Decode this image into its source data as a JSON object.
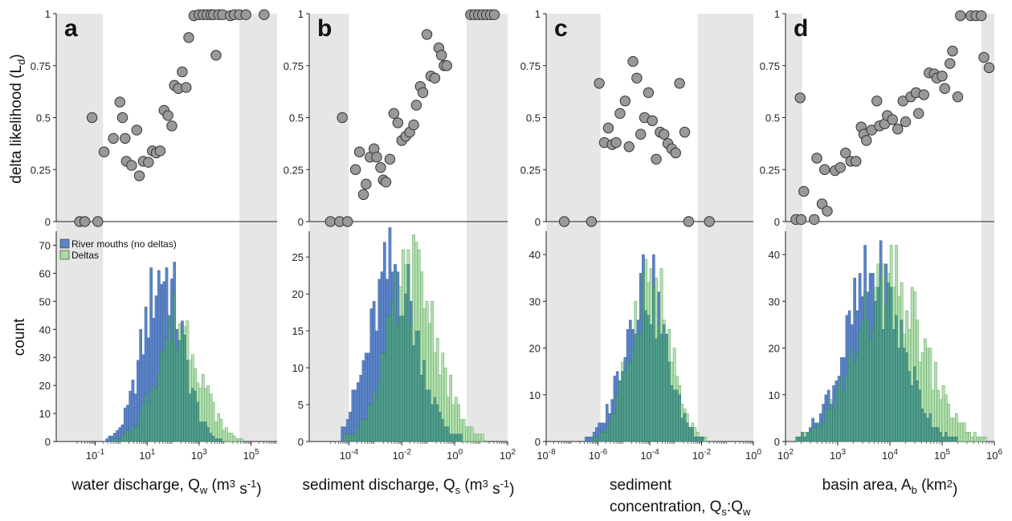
{
  "figure": {
    "ylabel_top": "delta likelihood (L",
    "ylabel_top_sub": "d",
    "ylabel_top_end": ")",
    "ylabel_bottom": "count",
    "legend": [
      {
        "label": "River mouths (no deltas)",
        "color": "#5b83c7"
      },
      {
        "label": "Deltas",
        "color": "#a9dba0"
      }
    ]
  },
  "colors": {
    "shade": "#e6e6e6",
    "point_fill": "#999999",
    "point_stroke": "#333333",
    "bar_blue": "#5b83c7",
    "bar_green": "#a6dca0",
    "overlap": "#4f9d8d"
  },
  "chart_data": [
    {
      "letter": "a",
      "type": "scatter+histogram",
      "xscale": "log",
      "xlim_log": [
        -2.5,
        6
      ],
      "xlabel": {
        "pre": "water discharge, Q",
        "sub": "w",
        "post": " (m",
        "sup1": "3",
        "mid": " s",
        "sup2": "-1",
        "end": ")"
      },
      "xticks": [
        {
          "base": "10",
          "exp": "-1",
          "v": -1
        },
        {
          "base": "10",
          "exp": "1",
          "v": 1
        },
        {
          "base": "10",
          "exp": "3",
          "v": 3
        },
        {
          "base": "10",
          "exp": "5",
          "v": 5
        }
      ],
      "shade": [
        [
          -2.5,
          -0.7
        ],
        [
          4.55,
          6
        ]
      ],
      "top_ylim": [
        0,
        1
      ],
      "top_yticks": [
        {
          "v": 0,
          "label": "0"
        },
        {
          "v": 0.25,
          "label": "0.25"
        },
        {
          "v": 0.5,
          "label": "0.5"
        },
        {
          "v": 0.75,
          "label": "0.75"
        },
        {
          "v": 1,
          "label": "1"
        }
      ],
      "likelihood_points": [
        [
          -1.6,
          0
        ],
        [
          -1.4,
          0
        ],
        [
          -0.9,
          0
        ],
        [
          -1.12,
          0.5
        ],
        [
          -0.66,
          0.335
        ],
        [
          -0.3,
          0.4
        ],
        [
          -0.05,
          0.575
        ],
        [
          0.05,
          0.5
        ],
        [
          0.15,
          0.4
        ],
        [
          0.2,
          0.29
        ],
        [
          0.4,
          0.27
        ],
        [
          0.6,
          0.44
        ],
        [
          0.7,
          0.22
        ],
        [
          0.85,
          0.29
        ],
        [
          1.05,
          0.285
        ],
        [
          1.2,
          0.34
        ],
        [
          1.35,
          0.33
        ],
        [
          1.5,
          0.34
        ],
        [
          1.65,
          0.535
        ],
        [
          1.8,
          0.51
        ],
        [
          1.95,
          0.46
        ],
        [
          2.05,
          0.655
        ],
        [
          2.2,
          0.64
        ],
        [
          2.35,
          0.72
        ],
        [
          2.5,
          0.645
        ],
        [
          2.6,
          0.885
        ],
        [
          2.8,
          0.99
        ],
        [
          3.0,
          0.995
        ],
        [
          3.15,
          0.995
        ],
        [
          3.3,
          0.995
        ],
        [
          3.45,
          0.995
        ],
        [
          3.55,
          0.995
        ],
        [
          3.75,
          0.995
        ],
        [
          3.9,
          0.995
        ],
        [
          4.2,
          0.99
        ],
        [
          4.35,
          0.995
        ],
        [
          4.55,
          0.995
        ],
        [
          4.8,
          0.995
        ],
        [
          3.65,
          0.8
        ],
        [
          5.5,
          0.995
        ]
      ],
      "bottom_ylim": [
        0,
        75
      ],
      "bottom_yticks": [
        {
          "v": 0,
          "label": "0"
        },
        {
          "v": 10,
          "label": "10"
        },
        {
          "v": 20,
          "label": "20"
        },
        {
          "v": 30,
          "label": "30"
        },
        {
          "v": 40,
          "label": "40"
        },
        {
          "v": 50,
          "label": "50"
        },
        {
          "v": 60,
          "label": "60"
        },
        {
          "v": 70,
          "label": "70"
        }
      ],
      "hist_mu_blue": 1.6,
      "hist_sd_blue": 0.75,
      "hist_peak_blue": 62,
      "hist_mu_green": 2.2,
      "hist_sd_green": 0.85,
      "hist_peak_green": 44,
      "hist_range": [
        -1.7,
        5.6
      ],
      "hist_bin": 0.1
    },
    {
      "letter": "b",
      "type": "scatter+histogram",
      "xscale": "log",
      "xlim_log": [
        -5.5,
        2
      ],
      "xlabel": {
        "pre": "sediment discharge, Q",
        "sub": "s",
        "post": " (m",
        "sup1": "3",
        "mid": " s",
        "sup2": "-1",
        "end": ")"
      },
      "xticks": [
        {
          "base": "10",
          "exp": "-4",
          "v": -4
        },
        {
          "base": "10",
          "exp": "-2",
          "v": -2
        },
        {
          "base": "10",
          "exp": "0",
          "v": 0
        },
        {
          "base": "10",
          "exp": "2",
          "v": 2
        }
      ],
      "shade": [
        [
          -5.5,
          -4.0
        ],
        [
          0.45,
          2
        ]
      ],
      "top_ylim": [
        0,
        1
      ],
      "top_yticks": [
        {
          "v": 0,
          "label": "0"
        },
        {
          "v": 0.25,
          "label": "0.25"
        },
        {
          "v": 0.5,
          "label": "0.5"
        },
        {
          "v": 0.75,
          "label": "0.75"
        },
        {
          "v": 1,
          "label": "1"
        }
      ],
      "likelihood_points": [
        [
          -4.7,
          0
        ],
        [
          -4.35,
          0
        ],
        [
          -4.05,
          0
        ],
        [
          -4.25,
          0.5
        ],
        [
          -3.75,
          0.25
        ],
        [
          -3.6,
          0.335
        ],
        [
          -3.45,
          0.13
        ],
        [
          -3.35,
          0.18
        ],
        [
          -3.2,
          0.31
        ],
        [
          -3.05,
          0.35
        ],
        [
          -2.95,
          0.31
        ],
        [
          -2.8,
          0.26
        ],
        [
          -2.7,
          0.2
        ],
        [
          -2.6,
          0.19
        ],
        [
          -2.45,
          0.3
        ],
        [
          -2.3,
          0.52
        ],
        [
          -2.15,
          0.475
        ],
        [
          -2.0,
          0.39
        ],
        [
          -1.85,
          0.41
        ],
        [
          -1.7,
          0.43
        ],
        [
          -1.55,
          0.465
        ],
        [
          -1.45,
          0.56
        ],
        [
          -1.3,
          0.65
        ],
        [
          -1.2,
          0.62
        ],
        [
          -1.05,
          0.9
        ],
        [
          -0.9,
          0.7
        ],
        [
          -0.75,
          0.69
        ],
        [
          -0.6,
          0.835
        ],
        [
          -0.5,
          0.8
        ],
        [
          -0.4,
          0.75
        ],
        [
          -0.3,
          0.75
        ],
        [
          0.6,
          0.995
        ],
        [
          0.75,
          0.995
        ],
        [
          0.9,
          0.995
        ],
        [
          1.05,
          0.995
        ],
        [
          1.2,
          0.995
        ],
        [
          1.35,
          0.995
        ],
        [
          1.5,
          0.995
        ]
      ],
      "bottom_ylim": [
        0,
        28.5
      ],
      "bottom_yticks": [
        {
          "v": 0,
          "label": "0"
        },
        {
          "v": 5,
          "label": "5"
        },
        {
          "v": 10,
          "label": "10"
        },
        {
          "v": 15,
          "label": "15"
        },
        {
          "v": 20,
          "label": "20"
        },
        {
          "v": 25,
          "label": "25"
        }
      ],
      "hist_mu_blue": -2.3,
      "hist_sd_blue": 0.9,
      "hist_peak_blue": 24,
      "hist_mu_green": -1.6,
      "hist_sd_green": 0.95,
      "hist_peak_green": 23,
      "hist_range": [
        -4.3,
        1.6
      ],
      "hist_bin": 0.1
    },
    {
      "letter": "c",
      "type": "scatter+histogram",
      "xscale": "log",
      "xlim_log": [
        -8,
        0
      ],
      "xlabel_line1": "sediment",
      "xlabel": {
        "pre": "concentration, Q",
        "sub": "s",
        "post": ":Q",
        "sup1": "",
        "mid": "",
        "sup2": "",
        "end": "",
        "sub2": "w"
      },
      "xticks": [
        {
          "base": "10",
          "exp": "-8",
          "v": -8
        },
        {
          "base": "10",
          "exp": "-6",
          "v": -6
        },
        {
          "base": "10",
          "exp": "-4",
          "v": -4
        },
        {
          "base": "10",
          "exp": "-2",
          "v": -2
        },
        {
          "base": "10",
          "exp": "0",
          "v": 0
        }
      ],
      "shade": [
        [
          -8,
          -5.9
        ],
        [
          -2.15,
          0
        ]
      ],
      "top_ylim": [
        0,
        1
      ],
      "top_yticks": [
        {
          "v": 0,
          "label": "0"
        },
        {
          "v": 0.25,
          "label": "0.25"
        },
        {
          "v": 0.5,
          "label": "0.5"
        },
        {
          "v": 0.75,
          "label": "0.75"
        },
        {
          "v": 1,
          "label": "1"
        }
      ],
      "likelihood_points": [
        [
          -7.3,
          0
        ],
        [
          -6.25,
          0
        ],
        [
          -5.95,
          0.665
        ],
        [
          -5.75,
          0.38
        ],
        [
          -5.6,
          0.45
        ],
        [
          -5.45,
          0.37
        ],
        [
          -5.3,
          0.38
        ],
        [
          -5.15,
          0.52
        ],
        [
          -4.95,
          0.58
        ],
        [
          -4.8,
          0.36
        ],
        [
          -4.65,
          0.77
        ],
        [
          -4.5,
          0.69
        ],
        [
          -4.35,
          0.42
        ],
        [
          -4.2,
          0.5
        ],
        [
          -4.05,
          0.62
        ],
        [
          -3.9,
          0.485
        ],
        [
          -3.75,
          0.3
        ],
        [
          -3.6,
          0.43
        ],
        [
          -3.45,
          0.42
        ],
        [
          -3.3,
          0.375
        ],
        [
          -3.15,
          0.35
        ],
        [
          -3.0,
          0.33
        ],
        [
          -2.85,
          0.665
        ],
        [
          -2.65,
          0.43
        ],
        [
          -2.5,
          0
        ],
        [
          -1.7,
          0
        ]
      ],
      "bottom_ylim": [
        0,
        45
      ],
      "bottom_yticks": [
        {
          "v": 0,
          "label": "0"
        },
        {
          "v": 10,
          "label": "10"
        },
        {
          "v": 20,
          "label": "20"
        },
        {
          "v": 30,
          "label": "30"
        },
        {
          "v": 40,
          "label": "40"
        }
      ],
      "hist_mu_blue": -4.2,
      "hist_sd_blue": 0.8,
      "hist_peak_blue": 35,
      "hist_mu_green": -4.0,
      "hist_sd_green": 0.75,
      "hist_peak_green": 36,
      "hist_range": [
        -6.5,
        -1.8
      ],
      "hist_bin": 0.1
    },
    {
      "letter": "d",
      "type": "scatter+histogram",
      "xscale": "log",
      "xlim_log": [
        2,
        6
      ],
      "xlabel": {
        "pre": "basin area, A",
        "sub": "b",
        "post": " (km",
        "sup1": "2",
        "mid": "",
        "sup2": "",
        "end": ")"
      },
      "xticks": [
        {
          "base": "10",
          "exp": "2",
          "v": 2
        },
        {
          "base": "10",
          "exp": "3",
          "v": 3
        },
        {
          "base": "10",
          "exp": "4",
          "v": 4
        },
        {
          "base": "10",
          "exp": "5",
          "v": 5
        },
        {
          "base": "10",
          "exp": "6",
          "v": 6
        }
      ],
      "shade": [
        [
          2,
          2.32
        ],
        [
          5.75,
          6
        ]
      ],
      "top_ylim": [
        0,
        1
      ],
      "top_yticks": [
        {
          "v": 0,
          "label": "0"
        },
        {
          "v": 0.25,
          "label": "0.25"
        },
        {
          "v": 0.5,
          "label": "0.5"
        },
        {
          "v": 0.75,
          "label": "0.75"
        },
        {
          "v": 1,
          "label": "1"
        }
      ],
      "likelihood_points": [
        [
          2.2,
          0.01
        ],
        [
          2.3,
          0.01
        ],
        [
          2.28,
          0.595
        ],
        [
          2.35,
          0.145
        ],
        [
          2.55,
          0.01
        ],
        [
          2.6,
          0.305
        ],
        [
          2.7,
          0.085
        ],
        [
          2.8,
          0.05
        ],
        [
          2.75,
          0.25
        ],
        [
          2.95,
          0.245
        ],
        [
          3.05,
          0.26
        ],
        [
          3.15,
          0.33
        ],
        [
          3.25,
          0.29
        ],
        [
          3.35,
          0.29
        ],
        [
          3.45,
          0.455
        ],
        [
          3.5,
          0.42
        ],
        [
          3.55,
          0.39
        ],
        [
          3.65,
          0.44
        ],
        [
          3.75,
          0.58
        ],
        [
          3.8,
          0.46
        ],
        [
          3.9,
          0.47
        ],
        [
          3.95,
          0.51
        ],
        [
          4.05,
          0.49
        ],
        [
          4.15,
          0.445
        ],
        [
          4.25,
          0.58
        ],
        [
          4.3,
          0.48
        ],
        [
          4.4,
          0.6
        ],
        [
          4.5,
          0.62
        ],
        [
          4.55,
          0.52
        ],
        [
          4.65,
          0.61
        ],
        [
          4.75,
          0.715
        ],
        [
          4.85,
          0.71
        ],
        [
          4.9,
          0.69
        ],
        [
          5.0,
          0.7
        ],
        [
          5.05,
          0.64
        ],
        [
          5.15,
          0.76
        ],
        [
          5.2,
          0.82
        ],
        [
          5.3,
          0.6
        ],
        [
          5.35,
          0.99
        ],
        [
          5.55,
          0.99
        ],
        [
          5.65,
          0.99
        ],
        [
          5.75,
          0.99
        ],
        [
          5.8,
          0.79
        ],
        [
          5.9,
          0.74
        ]
      ],
      "bottom_ylim": [
        0,
        45
      ],
      "bottom_yticks": [
        {
          "v": 0,
          "label": "0"
        },
        {
          "v": 10,
          "label": "10"
        },
        {
          "v": 20,
          "label": "20"
        },
        {
          "v": 30,
          "label": "30"
        },
        {
          "v": 40,
          "label": "40"
        }
      ],
      "hist_mu_blue": 3.7,
      "hist_sd_blue": 0.55,
      "hist_peak_blue": 36,
      "hist_mu_green": 4.0,
      "hist_sd_green": 0.65,
      "hist_peak_green": 34,
      "hist_range": [
        2.2,
        6.0
      ],
      "hist_bin": 0.05
    }
  ]
}
